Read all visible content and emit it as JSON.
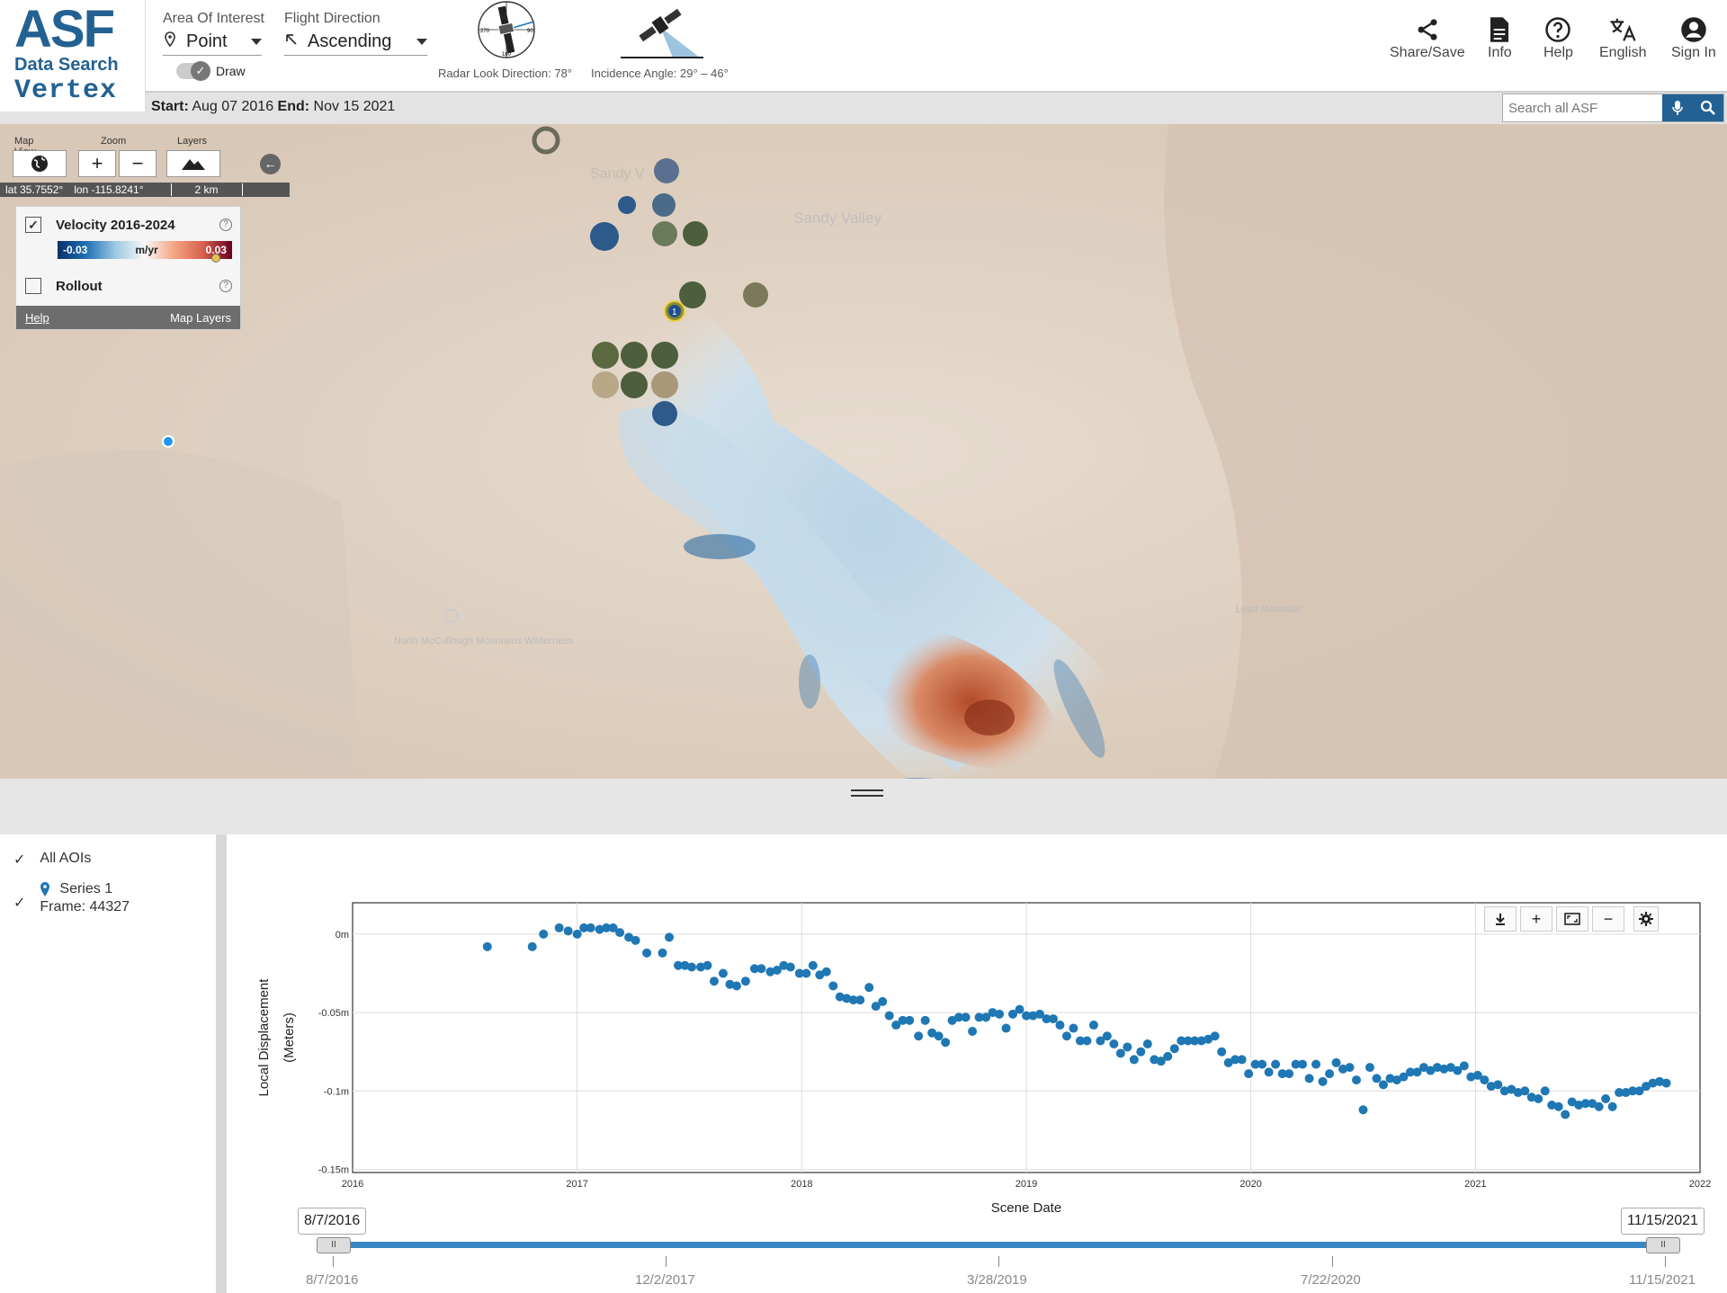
{
  "logo": {
    "asf": "ASF",
    "data_search": "Data Search",
    "vertex": "Vertex"
  },
  "header": {
    "aoi_label": "Area Of Interest",
    "aoi_value": "Point",
    "flight_label": "Flight Direction",
    "flight_value": "Ascending",
    "draw_label": "Draw",
    "radar_look": "Radar Look Direction: 78°",
    "incidence": "Incidence Angle: 29° – 46°",
    "compass_labels": {
      "n": "0",
      "e": "90",
      "s": "180",
      "w": "270"
    },
    "nav": [
      {
        "label": "Share/Save",
        "icon": "share-icon"
      },
      {
        "label": "Info",
        "icon": "document-icon"
      },
      {
        "label": "Help",
        "icon": "help-icon"
      },
      {
        "label": "English",
        "icon": "translate-icon"
      },
      {
        "label": "Sign In",
        "icon": "account-icon"
      }
    ]
  },
  "subbar": {
    "start_label": "Start:",
    "start_value": "Aug 07 2016",
    "end_label": "End:",
    "end_value": "Nov 15 2021",
    "search_placeholder": "Search all ASF"
  },
  "map_controls": {
    "map_view_label": "Map View",
    "zoom_label": "Zoom",
    "layers_label": "Layers",
    "lat": "lat 35.7552°",
    "lon": "lon -115.8241°",
    "scale": "2 km"
  },
  "map_labels": [
    "Sandy Valley",
    "Sandy V",
    "North McCullough Mountains Wilderness",
    "Lead Mountain"
  ],
  "marker_label": "1",
  "layers": {
    "velocity_label": "Velocity 2016-2024",
    "velocity_checked": true,
    "scale_min": "-0.03",
    "scale_unit": "m/yr",
    "scale_max": "0.03",
    "rollout_label": "Rollout",
    "rollout_checked": false,
    "help_link": "Help",
    "map_layers_link": "Map Layers"
  },
  "sidebar": {
    "all_aois": "All AOIs",
    "series_name": "Series 1",
    "frame": "Frame: 44327"
  },
  "chart_data": {
    "type": "scatter",
    "title": "",
    "xlabel": "Scene Date",
    "ylabel": "Local Displacement (Meters)",
    "xlim": [
      2016.0,
      2022.0
    ],
    "ylim": [
      -0.152,
      0.02
    ],
    "xticks": [
      "2016",
      "2017",
      "2018",
      "2019",
      "2020",
      "2021",
      "2022"
    ],
    "yticks": [
      {
        "v": 0,
        "label": "0m"
      },
      {
        "v": -0.05,
        "label": "-0.05m"
      },
      {
        "v": -0.1,
        "label": "-0.1m"
      },
      {
        "v": -0.15,
        "label": "-0.15m"
      }
    ],
    "grid": true,
    "color": "#1f77b4",
    "series": [
      {
        "name": "Series 1",
        "x": [
          2016.6,
          2016.8,
          2016.85,
          2016.92,
          2016.96,
          2017.0,
          2017.03,
          2017.06,
          2017.1,
          2017.13,
          2017.16,
          2017.19,
          2017.23,
          2017.26,
          2017.31,
          2017.38,
          2017.41,
          2017.45,
          2017.48,
          2017.51,
          2017.55,
          2017.58,
          2017.61,
          2017.65,
          2017.68,
          2017.71,
          2017.75,
          2017.79,
          2017.82,
          2017.86,
          2017.89,
          2017.92,
          2017.95,
          2017.99,
          2018.02,
          2018.05,
          2018.08,
          2018.11,
          2018.14,
          2018.17,
          2018.2,
          2018.23,
          2018.26,
          2018.3,
          2018.33,
          2018.36,
          2018.39,
          2018.42,
          2018.45,
          2018.48,
          2018.52,
          2018.55,
          2018.58,
          2018.61,
          2018.64,
          2018.67,
          2018.7,
          2018.73,
          2018.76,
          2018.79,
          2018.82,
          2018.85,
          2018.88,
          2018.91,
          2018.94,
          2018.97,
          2019.0,
          2019.03,
          2019.06,
          2019.09,
          2019.12,
          2019.15,
          2019.18,
          2019.21,
          2019.24,
          2019.27,
          2019.3,
          2019.33,
          2019.36,
          2019.39,
          2019.42,
          2019.45,
          2019.48,
          2019.51,
          2019.54,
          2019.57,
          2019.6,
          2019.63,
          2019.66,
          2019.69,
          2019.72,
          2019.75,
          2019.78,
          2019.81,
          2019.84,
          2019.87,
          2019.9,
          2019.93,
          2019.96,
          2019.99,
          2020.02,
          2020.05,
          2020.08,
          2020.11,
          2020.14,
          2020.17,
          2020.2,
          2020.23,
          2020.26,
          2020.29,
          2020.32,
          2020.35,
          2020.38,
          2020.41,
          2020.44,
          2020.47,
          2020.5,
          2020.53,
          2020.56,
          2020.59,
          2020.62,
          2020.65,
          2020.68,
          2020.71,
          2020.74,
          2020.77,
          2020.8,
          2020.83,
          2020.86,
          2020.89,
          2020.92,
          2020.95,
          2020.98,
          2021.01,
          2021.04,
          2021.07,
          2021.1,
          2021.13,
          2021.16,
          2021.19,
          2021.22,
          2021.25,
          2021.28,
          2021.31,
          2021.34,
          2021.37,
          2021.4,
          2021.43,
          2021.46,
          2021.49,
          2021.52,
          2021.55,
          2021.58,
          2021.61,
          2021.64,
          2021.67,
          2021.7,
          2021.73,
          2021.76,
          2021.79,
          2021.82,
          2021.85
        ],
        "y": [
          -0.008,
          -0.008,
          0.0,
          0.004,
          0.002,
          0.0,
          0.004,
          0.004,
          0.003,
          0.004,
          0.004,
          0.001,
          -0.002,
          -0.004,
          -0.012,
          -0.012,
          -0.002,
          -0.02,
          -0.02,
          -0.021,
          -0.021,
          -0.02,
          -0.03,
          -0.025,
          -0.032,
          -0.033,
          -0.03,
          -0.022,
          -0.022,
          -0.024,
          -0.023,
          -0.02,
          -0.021,
          -0.025,
          -0.025,
          -0.02,
          -0.026,
          -0.024,
          -0.033,
          -0.04,
          -0.041,
          -0.042,
          -0.042,
          -0.034,
          -0.046,
          -0.043,
          -0.052,
          -0.058,
          -0.055,
          -0.055,
          -0.065,
          -0.055,
          -0.063,
          -0.065,
          -0.069,
          -0.055,
          -0.053,
          -0.053,
          -0.062,
          -0.053,
          -0.053,
          -0.05,
          -0.051,
          -0.06,
          -0.051,
          -0.048,
          -0.052,
          -0.052,
          -0.051,
          -0.054,
          -0.054,
          -0.058,
          -0.065,
          -0.06,
          -0.068,
          -0.068,
          -0.058,
          -0.068,
          -0.065,
          -0.07,
          -0.076,
          -0.072,
          -0.08,
          -0.075,
          -0.07,
          -0.08,
          -0.081,
          -0.078,
          -0.073,
          -0.068,
          -0.068,
          -0.068,
          -0.068,
          -0.067,
          -0.065,
          -0.075,
          -0.082,
          -0.08,
          -0.08,
          -0.089,
          -0.083,
          -0.083,
          -0.088,
          -0.083,
          -0.089,
          -0.089,
          -0.083,
          -0.083,
          -0.092,
          -0.083,
          -0.094,
          -0.089,
          -0.082,
          -0.086,
          -0.085,
          -0.093,
          -0.112,
          -0.085,
          -0.092,
          -0.096,
          -0.092,
          -0.093,
          -0.091,
          -0.088,
          -0.088,
          -0.085,
          -0.087,
          -0.085,
          -0.086,
          -0.085,
          -0.087,
          -0.084,
          -0.091,
          -0.09,
          -0.093,
          -0.097,
          -0.096,
          -0.1,
          -0.099,
          -0.101,
          -0.1,
          -0.104,
          -0.105,
          -0.1,
          -0.109,
          -0.11,
          -0.115,
          -0.107,
          -0.109,
          -0.108,
          -0.108,
          -0.11,
          -0.105,
          -0.11,
          -0.101,
          -0.101,
          -0.1,
          -0.1,
          -0.097,
          -0.095,
          -0.094,
          -0.095
        ]
      }
    ]
  },
  "slider": {
    "start_box": "8/7/2016",
    "end_box": "11/15/2021",
    "ticks": [
      "8/7/2016",
      "12/2/2017",
      "3/28/2019",
      "7/22/2020",
      "11/15/2021"
    ]
  }
}
